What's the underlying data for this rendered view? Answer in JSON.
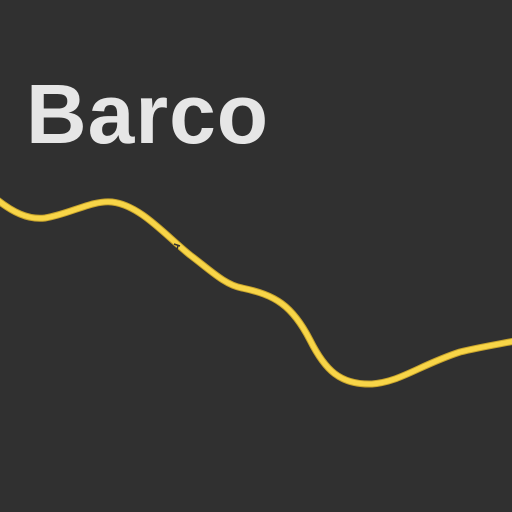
{
  "map": {
    "place_label": "Barco",
    "colors": {
      "background": "#303030",
      "label": "#e6e6e6",
      "road": "#f8d548",
      "road_casing": "#c9a52c"
    },
    "features": [
      {
        "kind": "road",
        "icon": "road-line"
      }
    ]
  }
}
